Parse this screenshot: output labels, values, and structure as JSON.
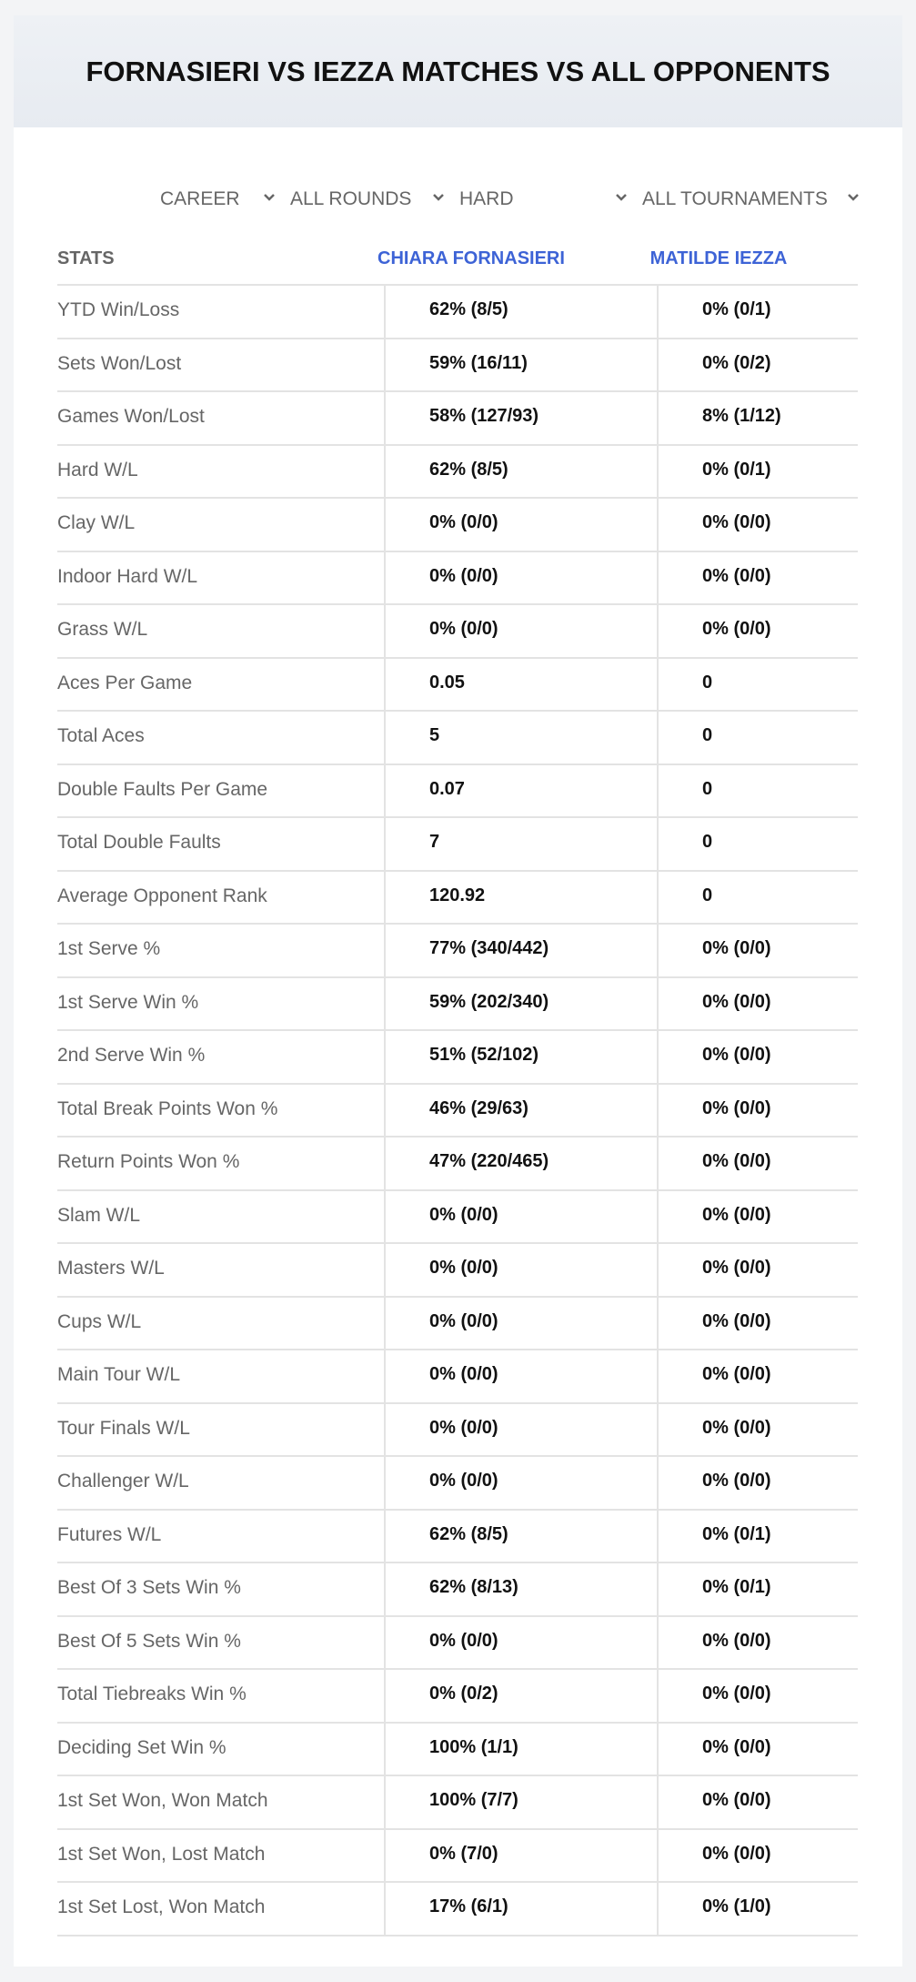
{
  "header": {
    "title": "FORNASIERI VS IEZZA MATCHES VS ALL OPPONENTS"
  },
  "filters": [
    "CAREER",
    "ALL ROUNDS",
    "HARD",
    "ALL TOURNAMENTS"
  ],
  "table": {
    "columns": [
      "STATS",
      "CHIARA FORNASIERI",
      "MATILDE IEZZA"
    ],
    "rows": [
      [
        "YTD Win/Loss",
        "62% (8/5)",
        "0% (0/1)"
      ],
      [
        "Sets Won/Lost",
        "59% (16/11)",
        "0% (0/2)"
      ],
      [
        "Games Won/Lost",
        "58% (127/93)",
        "8% (1/12)"
      ],
      [
        "Hard W/L",
        "62% (8/5)",
        "0% (0/1)"
      ],
      [
        "Clay W/L",
        "0% (0/0)",
        "0% (0/0)"
      ],
      [
        "Indoor Hard W/L",
        "0% (0/0)",
        "0% (0/0)"
      ],
      [
        "Grass W/L",
        "0% (0/0)",
        "0% (0/0)"
      ],
      [
        "Aces Per Game",
        "0.05",
        "0"
      ],
      [
        "Total Aces",
        "5",
        "0"
      ],
      [
        "Double Faults Per Game",
        "0.07",
        "0"
      ],
      [
        "Total Double Faults",
        "7",
        "0"
      ],
      [
        "Average Opponent Rank",
        "120.92",
        "0"
      ],
      [
        "1st Serve %",
        "77% (340/442)",
        "0% (0/0)"
      ],
      [
        "1st Serve Win %",
        "59% (202/340)",
        "0% (0/0)"
      ],
      [
        "2nd Serve Win %",
        "51% (52/102)",
        "0% (0/0)"
      ],
      [
        "Total Break Points Won %",
        "46% (29/63)",
        "0% (0/0)"
      ],
      [
        "Return Points Won %",
        "47% (220/465)",
        "0% (0/0)"
      ],
      [
        "Slam W/L",
        "0% (0/0)",
        "0% (0/0)"
      ],
      [
        "Masters W/L",
        "0% (0/0)",
        "0% (0/0)"
      ],
      [
        "Cups W/L",
        "0% (0/0)",
        "0% (0/0)"
      ],
      [
        "Main Tour W/L",
        "0% (0/0)",
        "0% (0/0)"
      ],
      [
        "Tour Finals W/L",
        "0% (0/0)",
        "0% (0/0)"
      ],
      [
        "Challenger W/L",
        "0% (0/0)",
        "0% (0/0)"
      ],
      [
        "Futures W/L",
        "62% (8/5)",
        "0% (0/1)"
      ],
      [
        "Best Of 3 Sets Win %",
        "62% (8/13)",
        "0% (0/1)"
      ],
      [
        "Best Of 5 Sets Win %",
        "0% (0/0)",
        "0% (0/0)"
      ],
      [
        "Total Tiebreaks Win %",
        "0% (0/2)",
        "0% (0/0)"
      ],
      [
        "Deciding Set Win %",
        "100% (1/1)",
        "0% (0/0)"
      ],
      [
        "1st Set Won, Won Match",
        "100% (7/7)",
        "0% (0/0)"
      ],
      [
        "1st Set Won, Lost Match",
        "0% (7/0)",
        "0% (0/0)"
      ],
      [
        "1st Set Lost, Won Match",
        "17% (6/1)",
        "0% (1/0)"
      ]
    ]
  }
}
